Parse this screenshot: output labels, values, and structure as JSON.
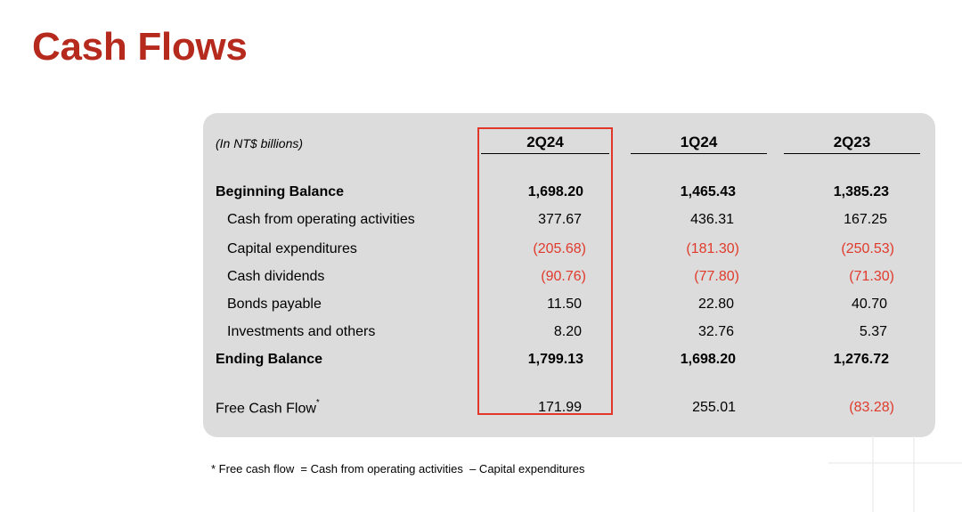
{
  "title": "Cash Flows",
  "table": {
    "unit_label": "(In NT$ billions)",
    "columns": [
      "2Q24",
      "1Q24",
      "2Q23"
    ],
    "rows": [
      {
        "label": "Beginning Balance",
        "bold": true,
        "indent": false,
        "values": [
          "1,698.20",
          "1,465.43",
          "1,385.23"
        ],
        "negative": [
          false,
          false,
          false
        ]
      },
      {
        "label": "Cash from operating activities",
        "bold": false,
        "indent": true,
        "values": [
          "377.67",
          "436.31",
          "167.25"
        ],
        "negative": [
          false,
          false,
          false
        ]
      },
      {
        "label": "Capital expenditures",
        "bold": false,
        "indent": true,
        "values": [
          "(205.68)",
          "(181.30)",
          "(250.53)"
        ],
        "negative": [
          true,
          true,
          true
        ]
      },
      {
        "label": "Cash dividends",
        "bold": false,
        "indent": true,
        "values": [
          "(90.76)",
          "(77.80)",
          "(71.30)"
        ],
        "negative": [
          true,
          true,
          true
        ]
      },
      {
        "label": "Bonds payable",
        "bold": false,
        "indent": true,
        "values": [
          "11.50",
          "22.80",
          "40.70"
        ],
        "negative": [
          false,
          false,
          false
        ]
      },
      {
        "label": "Investments and others",
        "bold": false,
        "indent": true,
        "values": [
          "8.20",
          "32.76",
          "5.37"
        ],
        "negative": [
          false,
          false,
          false
        ]
      },
      {
        "label": "Ending Balance",
        "bold": true,
        "indent": false,
        "values": [
          "1,799.13",
          "1,698.20",
          "1,276.72"
        ],
        "negative": [
          false,
          false,
          false
        ]
      }
    ],
    "free_cash_flow": {
      "label": "Free Cash Flow",
      "marker": "*",
      "values": [
        "171.99",
        "255.01",
        "(83.28)"
      ],
      "negative": [
        false,
        false,
        true
      ]
    }
  },
  "footnote": "* Free cash flow  = Cash from operating activities  – Capital expenditures",
  "colors": {
    "title": "#b52a1d",
    "negative": "#e03a2c",
    "highlight": "#e0372a",
    "panel": "#dcdcdc"
  }
}
